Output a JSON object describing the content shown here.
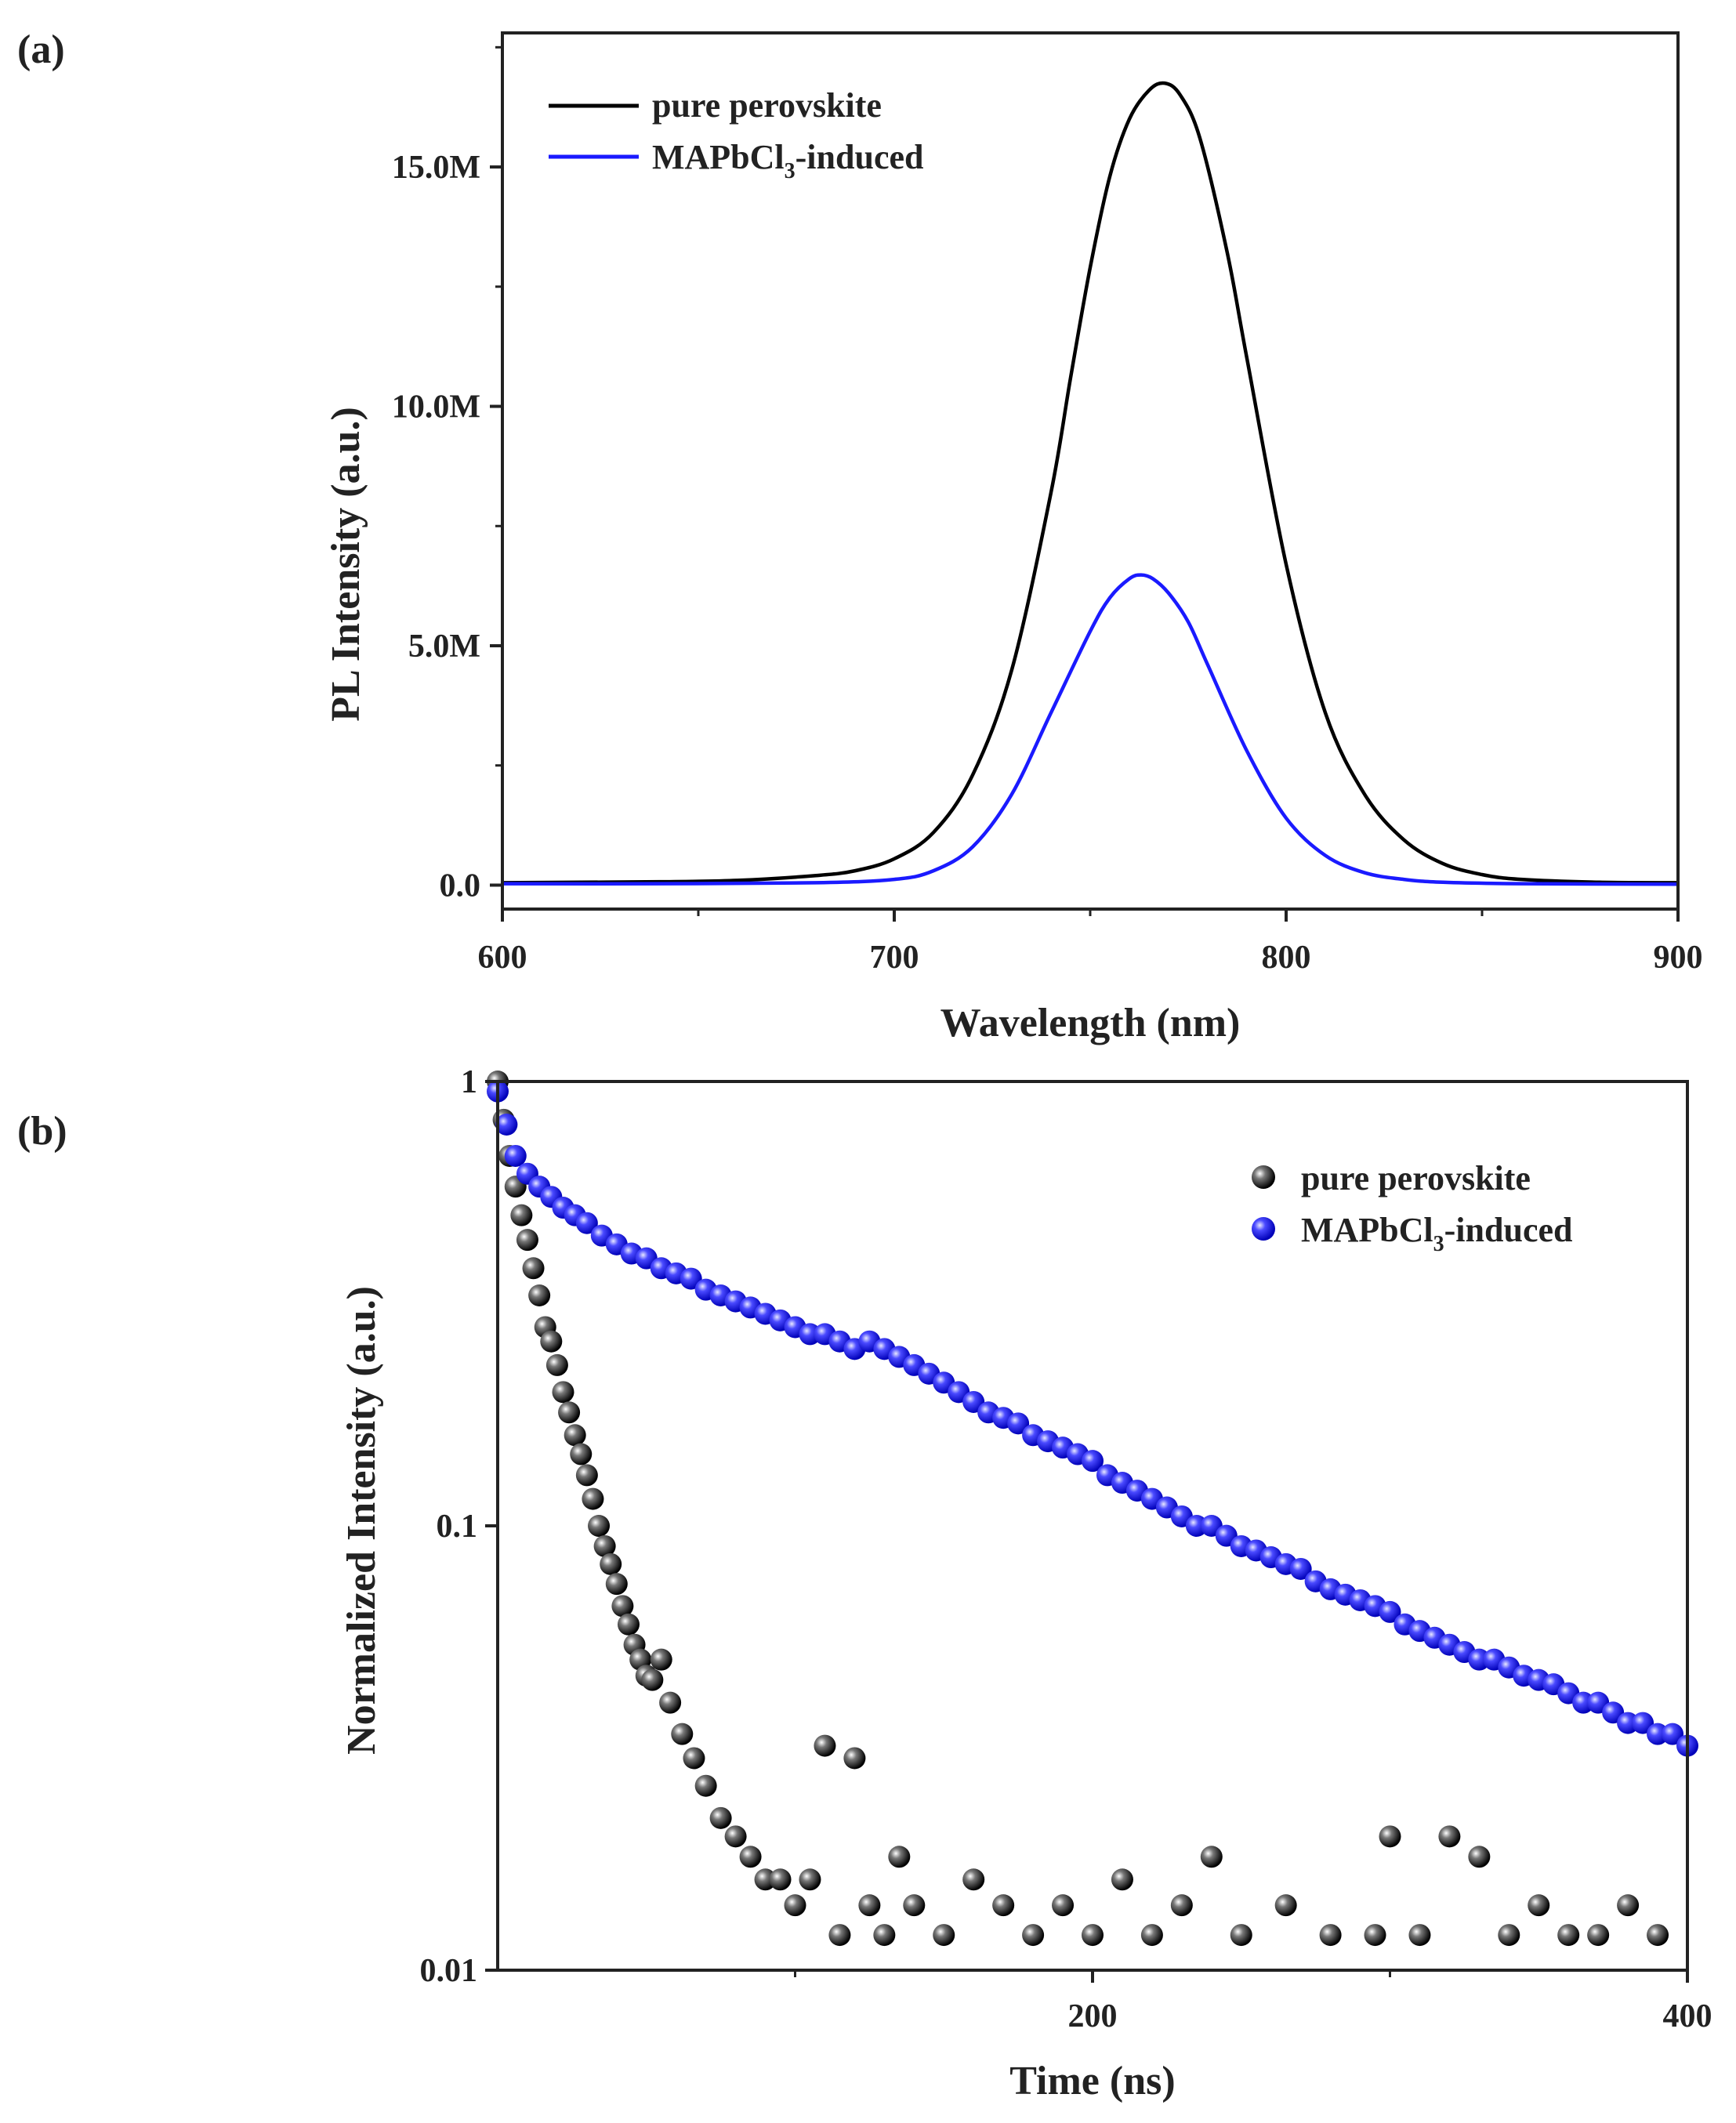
{
  "figure": {
    "panel_a_label": "(a)",
    "panel_b_label": "(b)"
  },
  "chart_data": [
    {
      "id": "a",
      "type": "line",
      "title": "",
      "xlabel": "Wavelength (nm)",
      "ylabel": "PL Intensity (a.u.)",
      "xlim": [
        600,
        900
      ],
      "ylim": [
        -0.5,
        17.8
      ],
      "y_unit_multiplier": "M",
      "xticks": [
        600,
        700,
        800,
        900
      ],
      "xtick_labels": [
        "600",
        "700",
        "800",
        "900"
      ],
      "yticks": [
        0,
        5,
        10,
        15
      ],
      "ytick_labels": [
        "0.0",
        "5.0M",
        "10.0M",
        "15.0M"
      ],
      "legend_position": "top-left",
      "series": [
        {
          "name": "pure perovskite",
          "color": "#000000",
          "x": [
            600,
            620,
            640,
            660,
            680,
            690,
            700,
            710,
            720,
            730,
            740,
            745,
            750,
            755,
            760,
            765,
            769,
            773,
            778,
            785,
            790,
            800,
            810,
            820,
            830,
            840,
            850,
            860,
            880,
            900
          ],
          "y": [
            0.05,
            0.06,
            0.07,
            0.1,
            0.2,
            0.3,
            0.55,
            1.1,
            2.3,
            4.5,
            8.2,
            10.6,
            12.9,
            14.8,
            16.0,
            16.6,
            16.75,
            16.5,
            15.6,
            13.2,
            11.0,
            6.7,
            3.6,
            1.9,
            0.95,
            0.45,
            0.22,
            0.12,
            0.06,
            0.05
          ]
        },
        {
          "name": "MAPbCl3-induced",
          "label_main": "MAPbCl",
          "label_sub": "3",
          "label_rest": "-induced",
          "color": "#1a1aff",
          "x": [
            600,
            640,
            680,
            700,
            710,
            720,
            730,
            740,
            750,
            755,
            760,
            763,
            766,
            770,
            775,
            780,
            790,
            800,
            810,
            820,
            830,
            840,
            860,
            900
          ],
          "y": [
            0.03,
            0.03,
            0.05,
            0.12,
            0.3,
            0.8,
            1.9,
            3.6,
            5.3,
            6.0,
            6.4,
            6.48,
            6.4,
            6.1,
            5.5,
            4.6,
            2.8,
            1.4,
            0.62,
            0.26,
            0.12,
            0.06,
            0.03,
            0.02
          ]
        }
      ]
    },
    {
      "id": "b",
      "type": "scatter",
      "title": "",
      "xlabel": "Time (ns)",
      "ylabel": "Normalized Intensity (a.u.)",
      "xlim": [
        0,
        400
      ],
      "ylim": [
        0.01,
        1
      ],
      "yscale": "log",
      "xticks": [
        200,
        400
      ],
      "xtick_labels": [
        "200",
        "400"
      ],
      "yticks": [
        0.01,
        0.1,
        1
      ],
      "ytick_labels": [
        "0.01",
        "0.1",
        "1"
      ],
      "legend_position": "top-right",
      "series": [
        {
          "name": "pure perovskite",
          "color": "#111111",
          "x": [
            0,
            2,
            4,
            6,
            8,
            10,
            12,
            14,
            16,
            18,
            20,
            22,
            24,
            26,
            28,
            30,
            32,
            34,
            36,
            38,
            40,
            42,
            44,
            46,
            48,
            50,
            52,
            55,
            58,
            62,
            66,
            70,
            75,
            80,
            85,
            90,
            95,
            100,
            105,
            110,
            115,
            120,
            125,
            130,
            135,
            140,
            150,
            160,
            170,
            180,
            190,
            200,
            210,
            220,
            230,
            240,
            250,
            265,
            280,
            295,
            300,
            310,
            320,
            330,
            340,
            350,
            360,
            370,
            380,
            390
          ],
          "y": [
            1.0,
            0.82,
            0.68,
            0.58,
            0.5,
            0.44,
            0.38,
            0.33,
            0.28,
            0.26,
            0.23,
            0.2,
            0.18,
            0.16,
            0.145,
            0.13,
            0.115,
            0.1,
            0.09,
            0.082,
            0.074,
            0.066,
            0.06,
            0.054,
            0.05,
            0.046,
            0.045,
            0.05,
            0.04,
            0.034,
            0.03,
            0.026,
            0.022,
            0.02,
            0.018,
            0.016,
            0.016,
            0.014,
            0.016,
            0.032,
            0.012,
            0.03,
            0.014,
            0.012,
            0.018,
            0.014,
            0.012,
            0.016,
            0.014,
            0.012,
            0.014,
            0.012,
            0.016,
            0.012,
            0.014,
            0.018,
            0.012,
            0.014,
            0.012,
            0.012,
            0.02,
            0.012,
            0.02,
            0.018,
            0.012,
            0.014,
            0.012,
            0.012,
            0.014,
            0.012
          ]
        },
        {
          "name": "MAPbCl3-induced",
          "label_main": "MAPbCl",
          "label_sub": "3",
          "label_rest": "-induced",
          "color": "#1a1aff",
          "x": [
            0,
            3,
            6,
            10,
            14,
            18,
            22,
            26,
            30,
            35,
            40,
            45,
            50,
            55,
            60,
            65,
            70,
            75,
            80,
            85,
            90,
            95,
            100,
            105,
            110,
            115,
            120,
            125,
            130,
            135,
            140,
            145,
            150,
            155,
            160,
            165,
            170,
            175,
            180,
            185,
            190,
            195,
            200,
            205,
            210,
            215,
            220,
            225,
            230,
            235,
            240,
            245,
            250,
            255,
            260,
            265,
            270,
            275,
            280,
            285,
            290,
            295,
            300,
            305,
            310,
            315,
            320,
            325,
            330,
            335,
            340,
            345,
            350,
            355,
            360,
            365,
            370,
            375,
            380,
            385,
            390,
            395,
            400
          ],
          "y": [
            0.95,
            0.8,
            0.68,
            0.62,
            0.58,
            0.55,
            0.52,
            0.5,
            0.48,
            0.45,
            0.43,
            0.41,
            0.4,
            0.38,
            0.37,
            0.36,
            0.34,
            0.33,
            0.32,
            0.31,
            0.3,
            0.29,
            0.28,
            0.27,
            0.27,
            0.26,
            0.25,
            0.26,
            0.25,
            0.24,
            0.23,
            0.22,
            0.21,
            0.2,
            0.19,
            0.18,
            0.175,
            0.17,
            0.16,
            0.155,
            0.15,
            0.145,
            0.14,
            0.13,
            0.125,
            0.12,
            0.115,
            0.11,
            0.105,
            0.1,
            0.1,
            0.095,
            0.09,
            0.088,
            0.085,
            0.082,
            0.08,
            0.075,
            0.072,
            0.07,
            0.068,
            0.066,
            0.064,
            0.06,
            0.058,
            0.056,
            0.054,
            0.052,
            0.05,
            0.05,
            0.048,
            0.046,
            0.045,
            0.044,
            0.042,
            0.04,
            0.04,
            0.038,
            0.036,
            0.036,
            0.034,
            0.034,
            0.032
          ]
        }
      ]
    }
  ]
}
